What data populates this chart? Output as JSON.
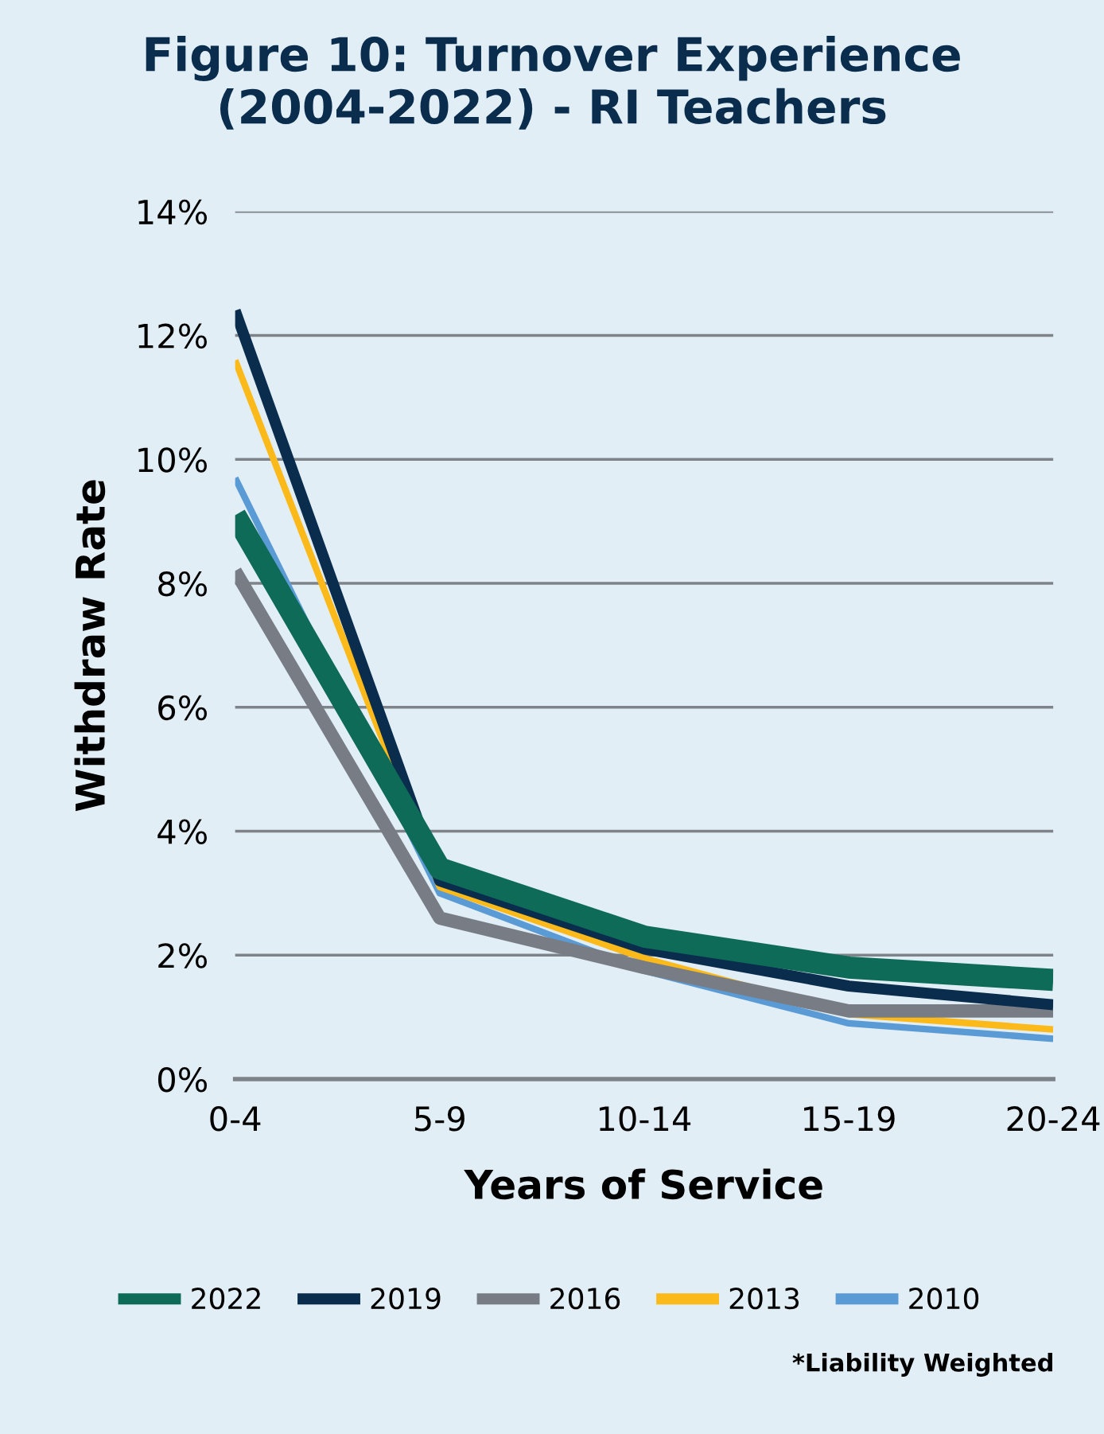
{
  "chart_data": {
    "type": "line",
    "title": "Figure 10: Turnover Experience (2004-2022) - RI Teachers",
    "xlabel": "Years of Service",
    "ylabel": "Withdraw Rate",
    "categories": [
      "0-4",
      "5-9",
      "10-14",
      "15-19",
      "20-24"
    ],
    "series": [
      {
        "name": "2022",
        "color": "#0e6b58",
        "values": [
          9.1,
          3.4,
          2.3,
          1.8,
          1.6
        ]
      },
      {
        "name": "2019",
        "color": "#0a2d4e",
        "values": [
          12.4,
          3.2,
          2.1,
          1.5,
          1.2
        ]
      },
      {
        "name": "2016",
        "color": "#787d85",
        "values": [
          8.2,
          2.6,
          1.8,
          1.1,
          1.1
        ]
      },
      {
        "name": "2013",
        "color": "#fbb91a",
        "values": [
          11.6,
          3.1,
          1.95,
          1.05,
          0.8
        ]
      },
      {
        "name": "2010",
        "color": "#5b9bd5",
        "values": [
          9.7,
          3.0,
          1.75,
          0.9,
          0.65
        ]
      }
    ],
    "ylim": [
      0,
      14
    ],
    "yticks": [
      {
        "value": 0,
        "label": "0%"
      },
      {
        "value": 2,
        "label": "2%"
      },
      {
        "value": 4,
        "label": "4%"
      },
      {
        "value": 6,
        "label": "6%"
      },
      {
        "value": 8,
        "label": "8%"
      },
      {
        "value": 10,
        "label": "10%"
      },
      {
        "value": 12,
        "label": "12%"
      },
      {
        "value": 14,
        "label": "14%"
      }
    ],
    "grid": "y",
    "legend": "bottom",
    "marker": "none",
    "line_style": "solid",
    "annotations": [
      "*Liability Weighted"
    ]
  }
}
